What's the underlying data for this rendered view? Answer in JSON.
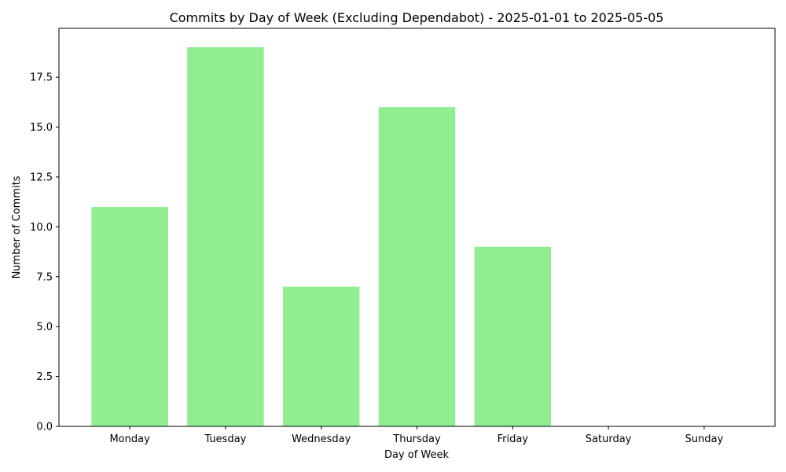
{
  "chart_data": {
    "type": "bar",
    "title": "Commits by Day of Week (Excluding Dependabot) - 2025-01-01 to 2025-05-05",
    "xlabel": "Day of Week",
    "ylabel": "Number of Commits",
    "categories": [
      "Monday",
      "Tuesday",
      "Wednesday",
      "Thursday",
      "Friday",
      "Saturday",
      "Sunday"
    ],
    "values": [
      11,
      19,
      7,
      16,
      9,
      0,
      0
    ],
    "ylim": [
      0,
      19.95
    ],
    "yticks": [
      0.0,
      2.5,
      5.0,
      7.5,
      10.0,
      12.5,
      15.0,
      17.5
    ],
    "ytick_labels": [
      "0.0",
      "2.5",
      "5.0",
      "7.5",
      "10.0",
      "12.5",
      "15.0",
      "17.5"
    ],
    "bar_color": "#90ee90",
    "grid": false,
    "legend": false
  }
}
